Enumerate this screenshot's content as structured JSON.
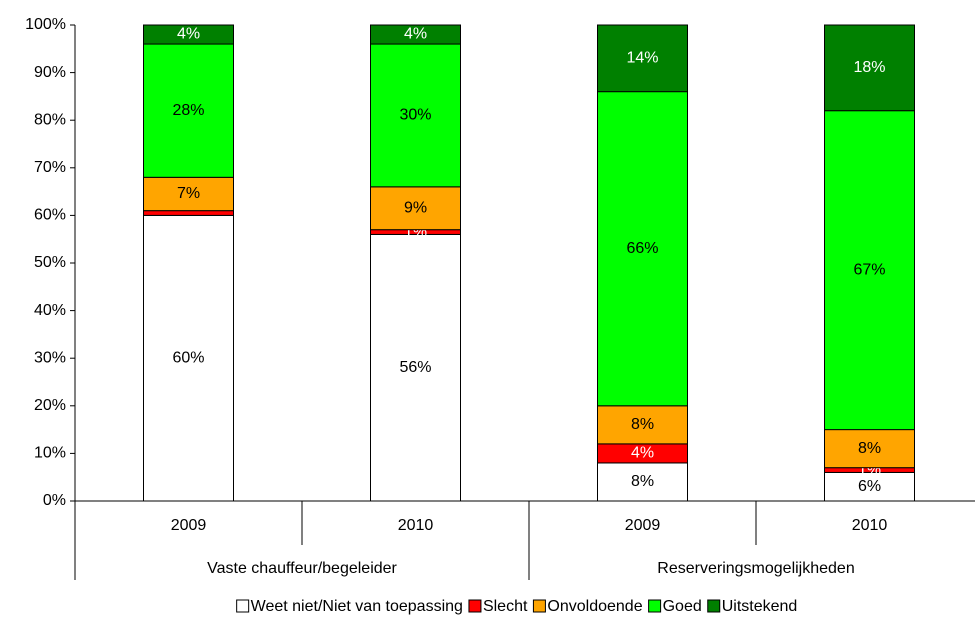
{
  "chart_data": {
    "type": "stacked_bar",
    "groups": [
      {
        "name": "Vaste chauffeur/begeleider",
        "categories": [
          "2009",
          "2010"
        ]
      },
      {
        "name": "Reserveringsmogelijkheden",
        "categories": [
          "2009",
          "2010"
        ]
      }
    ],
    "series": [
      {
        "name": "Weet niet/Niet van toepassing",
        "color": "#ffffff",
        "values": [
          60,
          56,
          8,
          6
        ],
        "value_labels": [
          "60%",
          "56%",
          "8%",
          "6%"
        ]
      },
      {
        "name": "Slecht",
        "color": "#ff0000",
        "values": [
          1,
          1,
          4,
          1
        ],
        "value_labels": [
          null,
          "1%",
          "4%",
          "1%"
        ]
      },
      {
        "name": "Onvoldoende",
        "color": "#ffa500",
        "values": [
          7,
          9,
          8,
          8
        ],
        "value_labels": [
          "7%",
          "9%",
          "8%",
          "8%"
        ]
      },
      {
        "name": "Goed",
        "color": "#00ff00",
        "values": [
          28,
          30,
          66,
          67
        ],
        "value_labels": [
          "28%",
          "30%",
          "66%",
          "67%"
        ]
      },
      {
        "name": "Uitstekend",
        "color": "#008000",
        "values": [
          4,
          4,
          14,
          18
        ],
        "value_labels": [
          "4%",
          "4%",
          "14%",
          "18%"
        ]
      }
    ],
    "ylim": [
      0,
      100
    ],
    "yticks": [
      {
        "value": 0,
        "label": "0%"
      },
      {
        "value": 10,
        "label": "10%"
      },
      {
        "value": 20,
        "label": "20%"
      },
      {
        "value": 30,
        "label": "30%"
      },
      {
        "value": 40,
        "label": "40%"
      },
      {
        "value": 50,
        "label": "50%"
      },
      {
        "value": 60,
        "label": "60%"
      },
      {
        "value": 70,
        "label": "70%"
      },
      {
        "value": 80,
        "label": "80%"
      },
      {
        "value": 90,
        "label": "90%"
      },
      {
        "value": 100,
        "label": "100%"
      }
    ],
    "legend": "bottom"
  }
}
